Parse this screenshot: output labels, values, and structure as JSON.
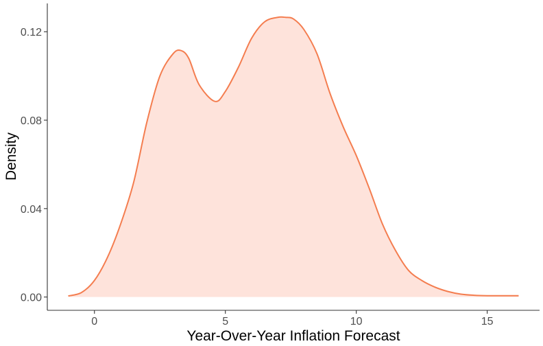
{
  "chart_data": {
    "type": "area",
    "title": "",
    "xlabel": "Year-Over-Year Inflation Forecast",
    "ylabel": "Density",
    "xlim": [
      -1.8,
      17.0
    ],
    "ylim": [
      -0.006,
      0.1328
    ],
    "x_ticks": [
      0,
      5,
      10,
      15
    ],
    "x_tick_labels": [
      "0",
      "5",
      "10",
      "15"
    ],
    "y_ticks": [
      0.0,
      0.04,
      0.08,
      0.12
    ],
    "y_tick_labels": [
      "0.00",
      "0.04",
      "0.08",
      "0.12"
    ],
    "grid": false,
    "legend": "none",
    "colors": {
      "line": "#f47d4f",
      "fill": "#fee3db",
      "axis": "#333333",
      "tick_text": "#4d4d4d"
    },
    "series": [
      {
        "x": [
          -1.0,
          -0.5,
          0.0,
          0.5,
          1.0,
          1.5,
          2.0,
          2.5,
          3.0,
          3.3,
          3.6,
          4.0,
          4.6,
          5.0,
          5.5,
          6.0,
          6.5,
          7.0,
          7.3,
          7.6,
          8.0,
          8.5,
          9.0,
          9.5,
          10.0,
          10.5,
          11.0,
          11.5,
          12.0,
          12.5,
          13.0,
          13.5,
          14.0,
          14.5,
          15.0,
          15.5,
          16.2
        ],
        "y": [
          0.0005,
          0.002,
          0.0075,
          0.018,
          0.033,
          0.052,
          0.079,
          0.1,
          0.11,
          0.1115,
          0.108,
          0.096,
          0.0885,
          0.093,
          0.104,
          0.117,
          0.1245,
          0.1265,
          0.1265,
          0.1258,
          0.121,
          0.11,
          0.092,
          0.077,
          0.064,
          0.049,
          0.033,
          0.021,
          0.012,
          0.0075,
          0.0045,
          0.0025,
          0.0013,
          0.0008,
          0.0006,
          0.0006,
          0.0006
        ]
      }
    ]
  }
}
